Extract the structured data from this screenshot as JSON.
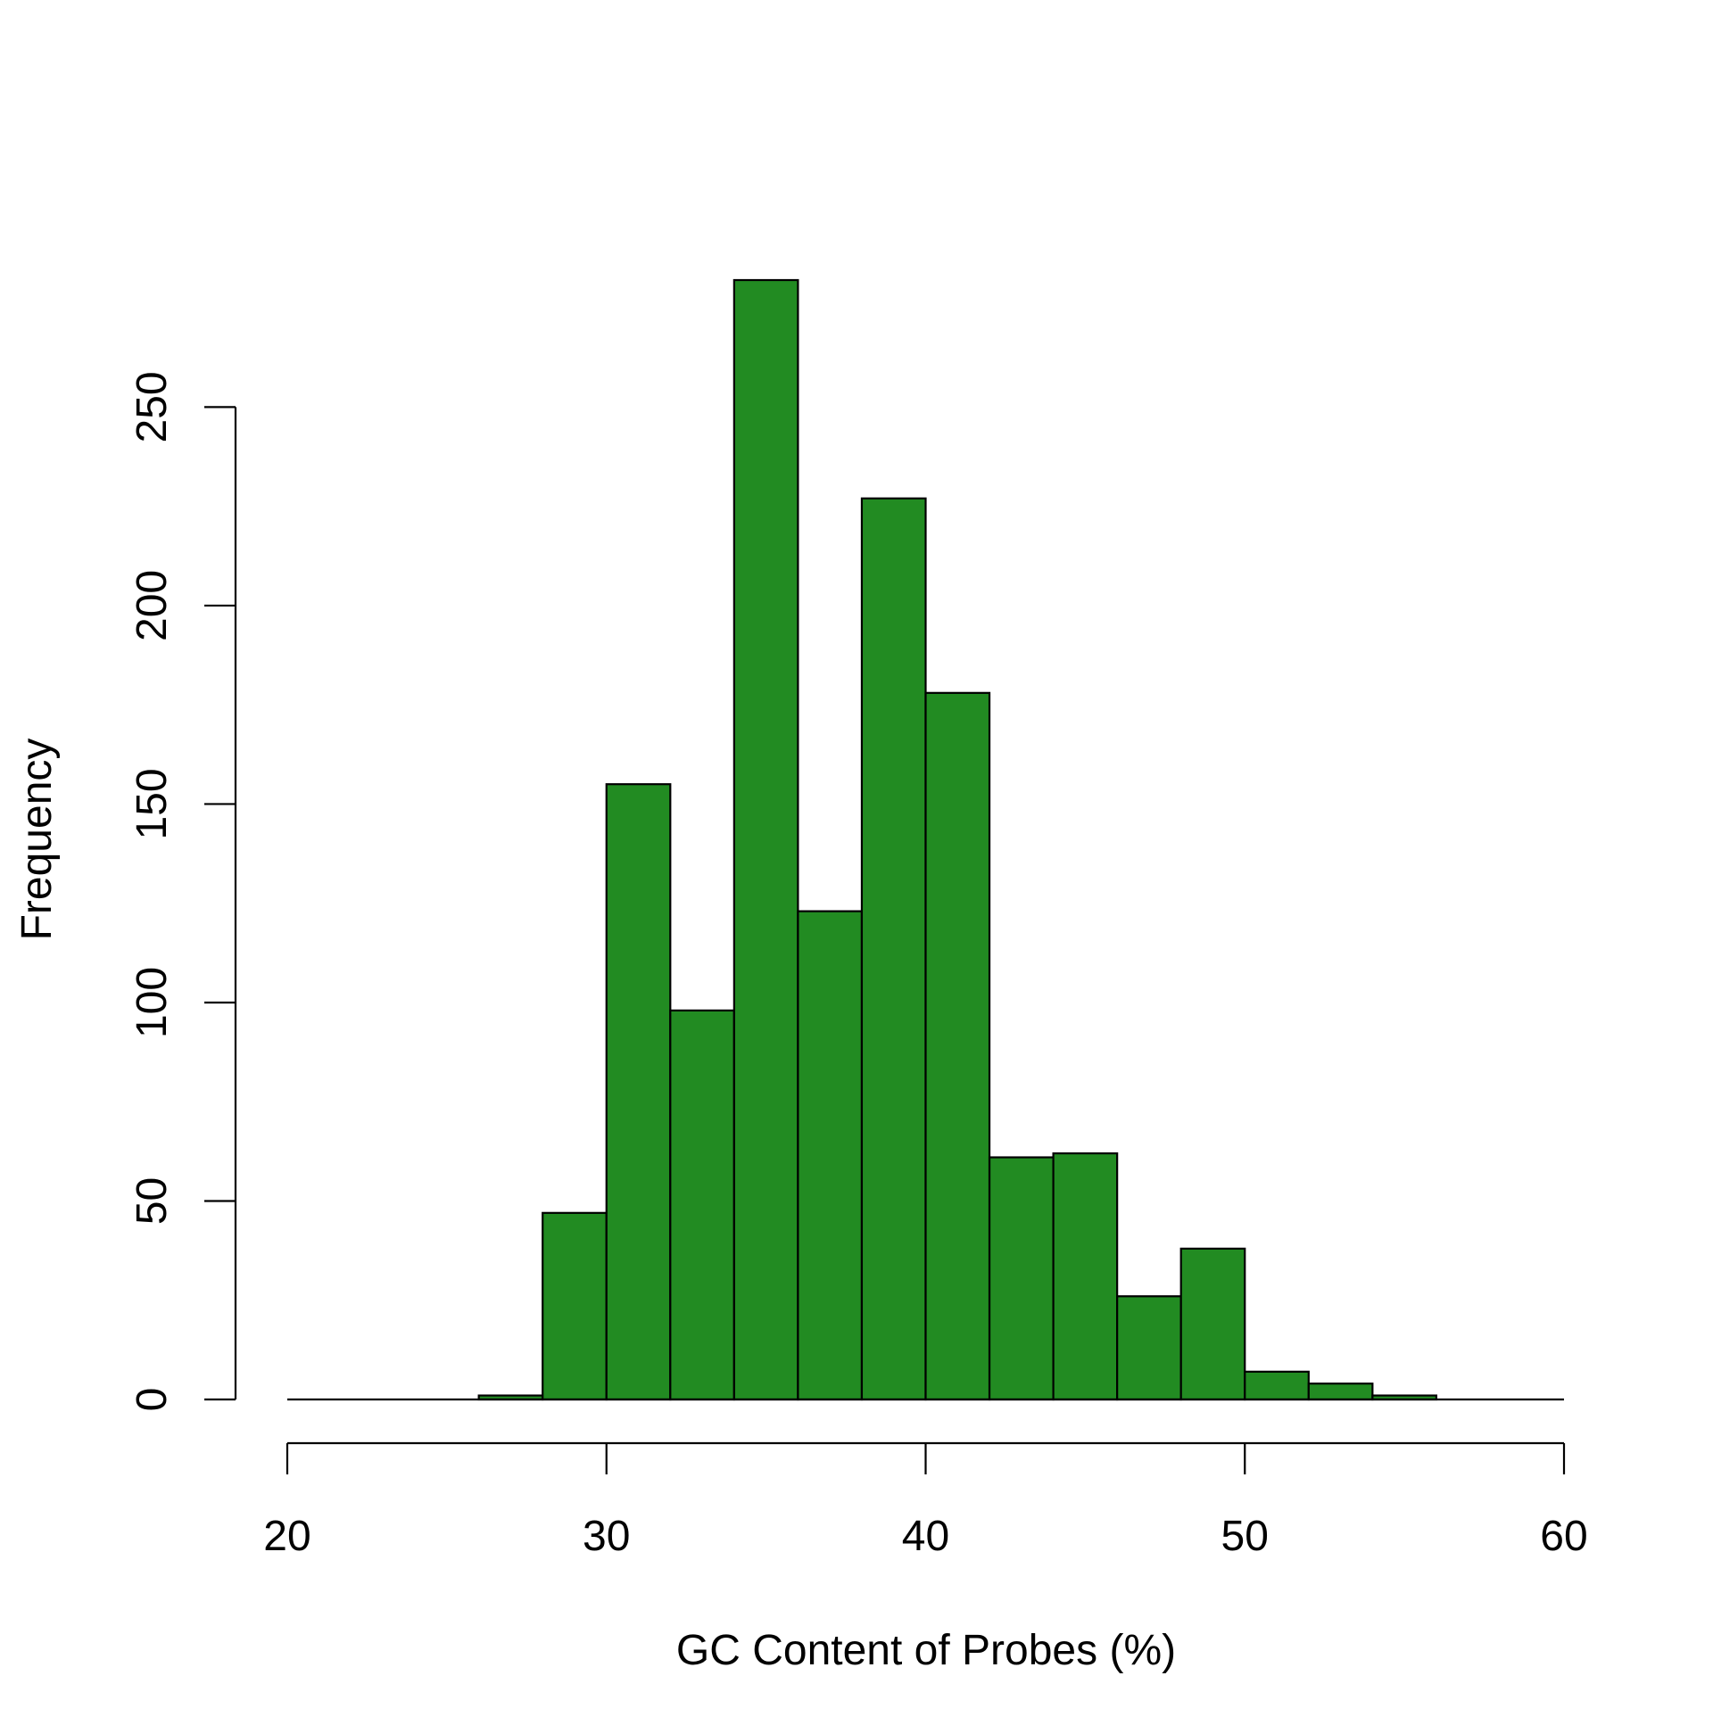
{
  "chart_data": {
    "type": "bar",
    "subtype": "histogram",
    "title": "",
    "xlabel": "GC Content of Probes (%)",
    "ylabel": "Frequency",
    "bin_edges": [
      20,
      22,
      24,
      26,
      28,
      30,
      32,
      34,
      36,
      38,
      40,
      42,
      44,
      46,
      48,
      50,
      52,
      54,
      56,
      58,
      60
    ],
    "values": [
      0,
      0,
      0,
      1,
      47,
      155,
      98,
      282,
      123,
      227,
      178,
      61,
      62,
      26,
      38,
      7,
      4,
      1,
      0,
      0
    ],
    "xlim": [
      20,
      60
    ],
    "ylim": [
      0,
      282
    ],
    "xticks": [
      20,
      30,
      40,
      50,
      60
    ],
    "yticks": [
      0,
      50,
      100,
      150,
      200,
      250
    ],
    "grid": false,
    "legend": "none",
    "colors": {
      "bar_fill": "#228B22",
      "bar_stroke": "#000000",
      "axis": "#000000"
    }
  }
}
